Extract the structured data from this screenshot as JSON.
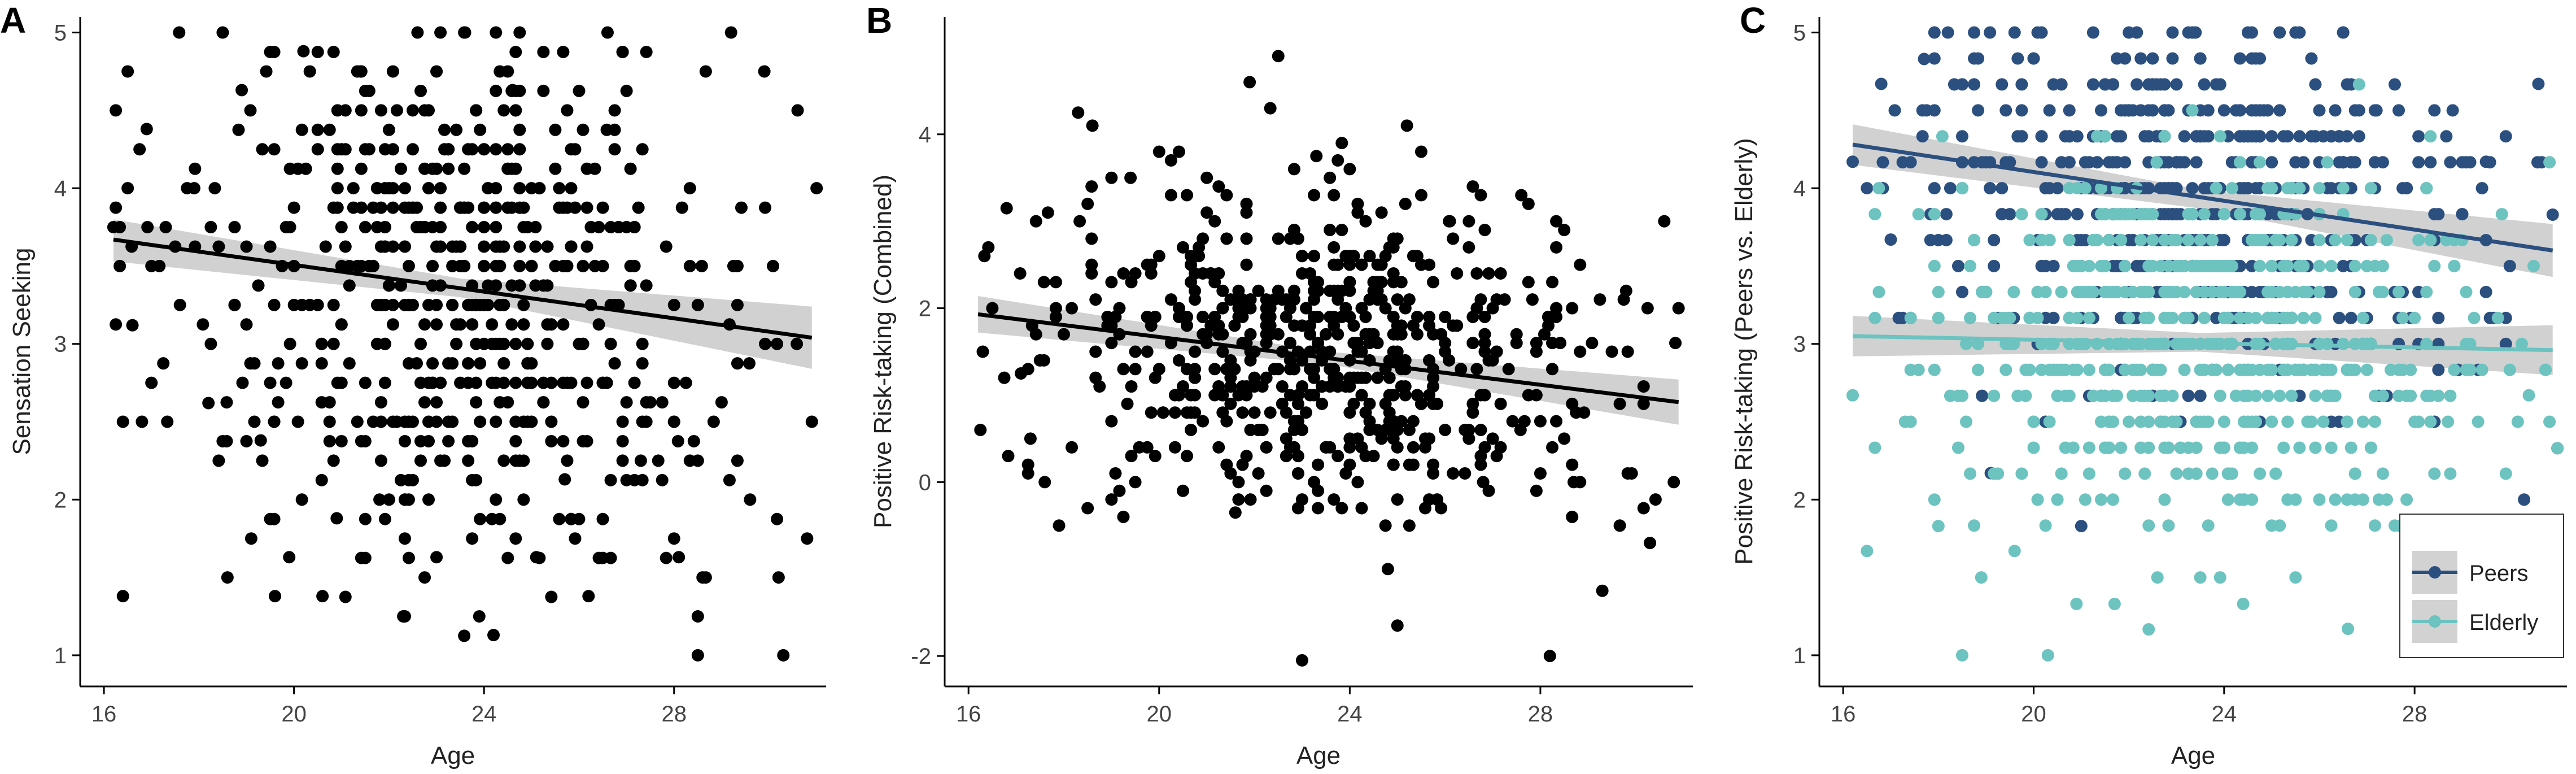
{
  "figure": {
    "panels": [
      "A",
      "B",
      "C"
    ]
  },
  "legend": {
    "items": [
      {
        "label": "Peers",
        "color": "#2b4f7e"
      },
      {
        "label": "Elderly",
        "color": "#6cc3c0"
      }
    ]
  },
  "chart_data": [
    {
      "panel": "A",
      "type": "scatter",
      "xlabel": "Age",
      "ylabel": "Sensation Seeking",
      "xlim": [
        15.5,
        31.2
      ],
      "ylim": [
        0.8,
        5.1
      ],
      "xticks": [
        16,
        20,
        24,
        28
      ],
      "yticks": [
        1,
        2,
        3,
        4,
        5
      ],
      "grid": false,
      "point_color": "#000000",
      "approx_n": 620,
      "fit_line": {
        "x": [
          16.2,
          30.9
        ],
        "y": [
          3.67,
          3.04
        ]
      },
      "confidence_band": {
        "x": [
          16.2,
          23.5,
          30.9
        ],
        "upper": [
          3.8,
          3.42,
          3.24
        ],
        "lower": [
          3.53,
          3.3,
          2.84
        ]
      },
      "sample_points": [
        [
          16.2,
          3.75
        ],
        [
          16.4,
          1.38
        ],
        [
          16.4,
          2.5
        ],
        [
          16.5,
          4.75
        ],
        [
          16.6,
          3.12
        ],
        [
          16.8,
          2.5
        ],
        [
          16.9,
          4.38
        ],
        [
          17.3,
          3.75
        ],
        [
          17.6,
          3.25
        ],
        [
          17.9,
          4.0
        ],
        [
          18.2,
          2.62
        ],
        [
          18.5,
          5.0
        ],
        [
          18.6,
          1.5
        ],
        [
          18.9,
          4.63
        ],
        [
          19.1,
          1.75
        ],
        [
          19.3,
          2.38
        ],
        [
          19.6,
          1.38
        ],
        [
          19.9,
          1.63
        ],
        [
          20.2,
          4.88
        ],
        [
          20.6,
          1.38
        ],
        [
          20.9,
          1.88
        ],
        [
          21.4,
          4.75
        ],
        [
          21.8,
          2.0
        ],
        [
          22.3,
          1.25
        ],
        [
          22.6,
          5.0
        ],
        [
          23.0,
          1.63
        ],
        [
          23.6,
          5.0
        ],
        [
          23.9,
          1.25
        ],
        [
          24.2,
          1.13
        ],
        [
          24.6,
          4.63
        ],
        [
          25.1,
          1.63
        ],
        [
          25.7,
          2.13
        ],
        [
          26.2,
          1.38
        ],
        [
          26.6,
          5.0
        ],
        [
          27.3,
          2.25
        ],
        [
          28.1,
          1.63
        ],
        [
          28.6,
          1.5
        ],
        [
          29.2,
          5.0
        ],
        [
          29.6,
          2.0
        ],
        [
          29.9,
          4.75
        ],
        [
          30.2,
          1.5
        ],
        [
          30.3,
          1.0
        ],
        [
          30.6,
          4.5
        ],
        [
          30.8,
          1.75
        ],
        [
          30.9,
          2.5
        ],
        [
          31.0,
          4.0
        ]
      ]
    },
    {
      "panel": "B",
      "type": "scatter",
      "xlabel": "Age",
      "ylabel": "Positive Risk-taking (Combined)",
      "xlim": [
        15.5,
        31.2
      ],
      "ylim": [
        -2.35,
        5.35
      ],
      "xticks": [
        16,
        20,
        24,
        28
      ],
      "yticks": [
        -2,
        0,
        2,
        4
      ],
      "grid": false,
      "point_color": "#000000",
      "approx_n": 620,
      "fit_line": {
        "x": [
          16.2,
          30.9
        ],
        "y": [
          1.93,
          0.92
        ]
      },
      "confidence_band": {
        "x": [
          16.2,
          23.5,
          30.9
        ],
        "upper": [
          2.14,
          1.5,
          1.18
        ],
        "lower": [
          1.72,
          1.36,
          0.66
        ]
      },
      "sample_points": [
        [
          16.3,
          1.5
        ],
        [
          16.5,
          2.0
        ],
        [
          16.8,
          3.15
        ],
        [
          17.1,
          1.25
        ],
        [
          17.3,
          0.5
        ],
        [
          17.6,
          0.0
        ],
        [
          17.9,
          -0.5
        ],
        [
          18.3,
          4.25
        ],
        [
          18.6,
          4.1
        ],
        [
          19.0,
          -0.2
        ],
        [
          19.4,
          3.5
        ],
        [
          20.0,
          3.8
        ],
        [
          20.5,
          -0.1
        ],
        [
          21.0,
          3.5
        ],
        [
          21.6,
          -0.35
        ],
        [
          21.9,
          4.6
        ],
        [
          22.5,
          4.9
        ],
        [
          23.0,
          -2.05
        ],
        [
          23.3,
          3.75
        ],
        [
          24.0,
          3.6
        ],
        [
          24.8,
          -1.0
        ],
        [
          25.0,
          -1.65
        ],
        [
          25.2,
          4.1
        ],
        [
          25.5,
          3.8
        ],
        [
          26.1,
          3.0
        ],
        [
          26.8,
          0.0
        ],
        [
          27.6,
          3.3
        ],
        [
          28.2,
          -2.0
        ],
        [
          28.7,
          0.0
        ],
        [
          29.3,
          -1.25
        ],
        [
          29.8,
          2.2
        ],
        [
          30.3,
          -0.7
        ],
        [
          30.6,
          3.0
        ],
        [
          30.8,
          0.0
        ],
        [
          30.9,
          2.0
        ]
      ]
    },
    {
      "panel": "C",
      "type": "scatter",
      "xlabel": "Age",
      "ylabel": "Positive Risk-taking (Peers vs. Elderly)",
      "xlim": [
        15.5,
        31.2
      ],
      "ylim": [
        0.8,
        5.1
      ],
      "xticks": [
        16,
        20,
        24,
        28
      ],
      "yticks": [
        1,
        2,
        3,
        4,
        5
      ],
      "grid": false,
      "legend_position": "bottom-right",
      "series": [
        {
          "name": "Peers",
          "color": "#2b4f7e",
          "approx_n": 620,
          "fit_line": {
            "x": [
              16.2,
              30.9
            ],
            "y": [
              4.28,
              3.6
            ]
          },
          "confidence_band": {
            "x": [
              16.2,
              23.5,
              30.9
            ],
            "upper": [
              4.41,
              3.99,
              3.77
            ],
            "lower": [
              4.15,
              3.87,
              3.43
            ]
          },
          "sample_points": [
            [
              16.2,
              4.17
            ],
            [
              16.8,
              4.67
            ],
            [
              17.0,
              3.67
            ],
            [
              17.7,
              4.83
            ],
            [
              18.2,
              5.0
            ],
            [
              19.1,
              2.17
            ],
            [
              19.6,
              5.0
            ],
            [
              21.0,
              1.83
            ],
            [
              22.0,
              5.0
            ],
            [
              23.4,
              5.0
            ],
            [
              24.5,
              5.0
            ],
            [
              25.5,
              5.0
            ],
            [
              26.5,
              5.0
            ],
            [
              27.2,
              4.5
            ],
            [
              28.8,
              4.5
            ],
            [
              29.5,
              4.17
            ],
            [
              30.3,
              2.0
            ],
            [
              30.6,
              4.67
            ],
            [
              30.9,
              3.83
            ],
            [
              31.0,
              2.33
            ]
          ]
        },
        {
          "name": "Elderly",
          "color": "#6cc3c0",
          "approx_n": 620,
          "fit_line": {
            "x": [
              16.2,
              30.9
            ],
            "y": [
              3.05,
              2.96
            ]
          },
          "confidence_band": {
            "x": [
              16.2,
              23.5,
              30.9
            ],
            "upper": [
              3.18,
              3.07,
              3.12
            ],
            "lower": [
              2.92,
              2.95,
              2.8
            ]
          },
          "sample_points": [
            [
              16.2,
              2.67
            ],
            [
              16.5,
              1.67
            ],
            [
              17.3,
              2.5
            ],
            [
              18.0,
              1.83
            ],
            [
              18.5,
              1.0
            ],
            [
              18.9,
              1.5
            ],
            [
              19.6,
              1.67
            ],
            [
              20.3,
              1.0
            ],
            [
              20.9,
              1.33
            ],
            [
              21.7,
              1.33
            ],
            [
              22.6,
              1.5
            ],
            [
              23.5,
              1.5
            ],
            [
              24.4,
              1.33
            ],
            [
              25.5,
              1.5
            ],
            [
              26.6,
              1.17
            ],
            [
              27.7,
              1.83
            ],
            [
              28.7,
              2.5
            ],
            [
              29.5,
              1.83
            ],
            [
              30.4,
              2.67
            ],
            [
              31.0,
              2.33
            ]
          ]
        }
      ]
    }
  ]
}
